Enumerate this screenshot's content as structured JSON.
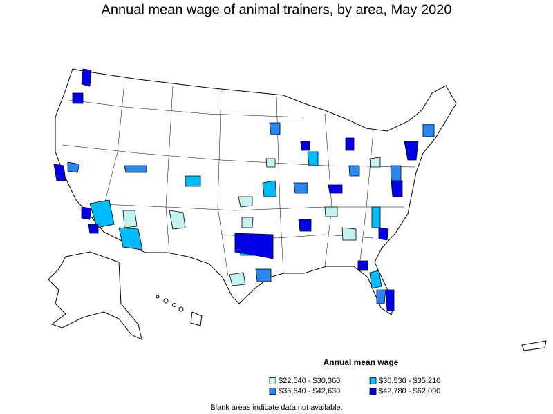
{
  "title": "Annual mean wage of animal trainers, by area, May 2020",
  "legend": {
    "title": "Annual mean wage",
    "items": [
      {
        "label": "$22,540 - $30,360",
        "color": "#c4f2f2"
      },
      {
        "label": "$30,530 - $35,210",
        "color": "#00bcff"
      },
      {
        "label": "$35,640 - $42,630",
        "color": "#2a86ec"
      },
      {
        "label": "$42,780 - $62,090",
        "color": "#0000e8"
      }
    ]
  },
  "note": "Blank areas indicate data not available."
}
